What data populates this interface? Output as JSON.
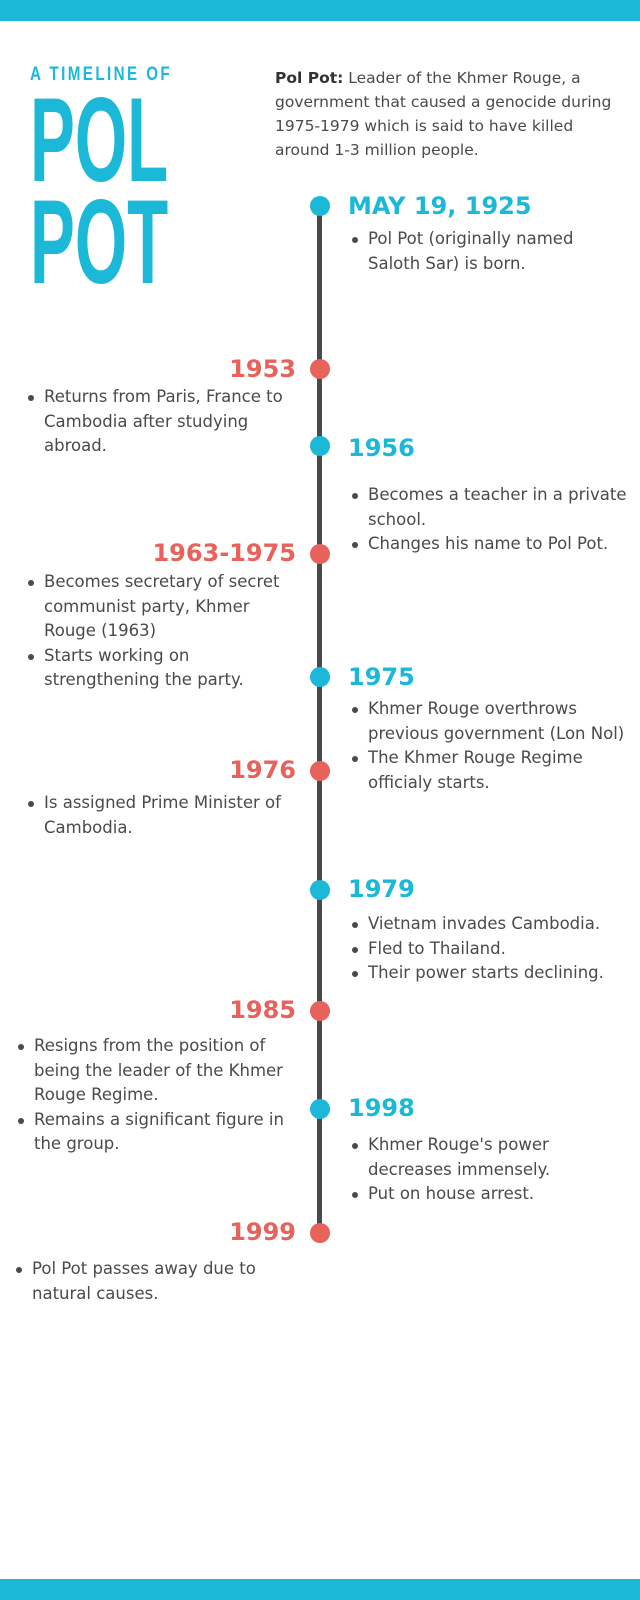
{
  "header": {
    "kicker": "A TIMELINE OF",
    "title_line1": "POL",
    "title_line2": "POT",
    "intro_bold": "Pol Pot:",
    "intro_text": " Leader of the Khmer Rouge, a government that caused a genocide during 1975-1979 which is said to have killed around 1-3 million people."
  },
  "colors": {
    "accent_blue": "#1cb8d8",
    "accent_red": "#e8625c",
    "line": "#4a4a4a"
  },
  "events": [
    {
      "year": "MAY 19, 1925",
      "items": [
        "Pol Pot (originally named Saloth Sar) is born."
      ]
    },
    {
      "year": "1953",
      "items": [
        "Returns from Paris, France to Cambodia after studying abroad."
      ]
    },
    {
      "year": "1956",
      "items": [
        "Becomes a teacher in a private school.",
        "Changes his name to Pol Pot."
      ]
    },
    {
      "year": "1963-1975",
      "items": [
        "Becomes secretary of secret communist party, Khmer Rouge (1963)",
        "Starts working on strengthening the party."
      ]
    },
    {
      "year": "1975",
      "items": [
        "Khmer Rouge overthrows previous government (Lon Nol)",
        "The Khmer Rouge Regime officialy starts."
      ]
    },
    {
      "year": "1976",
      "items": [
        "Is assigned Prime Minister of Cambodia."
      ]
    },
    {
      "year": "1979",
      "items": [
        "Vietnam invades Cambodia.",
        "Fled to Thailand.",
        "Their power starts declining."
      ]
    },
    {
      "year": "1985",
      "items": [
        "Resigns from the position of being the leader of the Khmer Rouge Regime.",
        "Remains a significant figure in the group."
      ]
    },
    {
      "year": "1998",
      "items": [
        "Khmer Rouge's power decreases immensely.",
        "Put on house arrest."
      ]
    },
    {
      "year": "1999",
      "items": [
        "Pol Pot passes away due to natural causes."
      ]
    }
  ]
}
